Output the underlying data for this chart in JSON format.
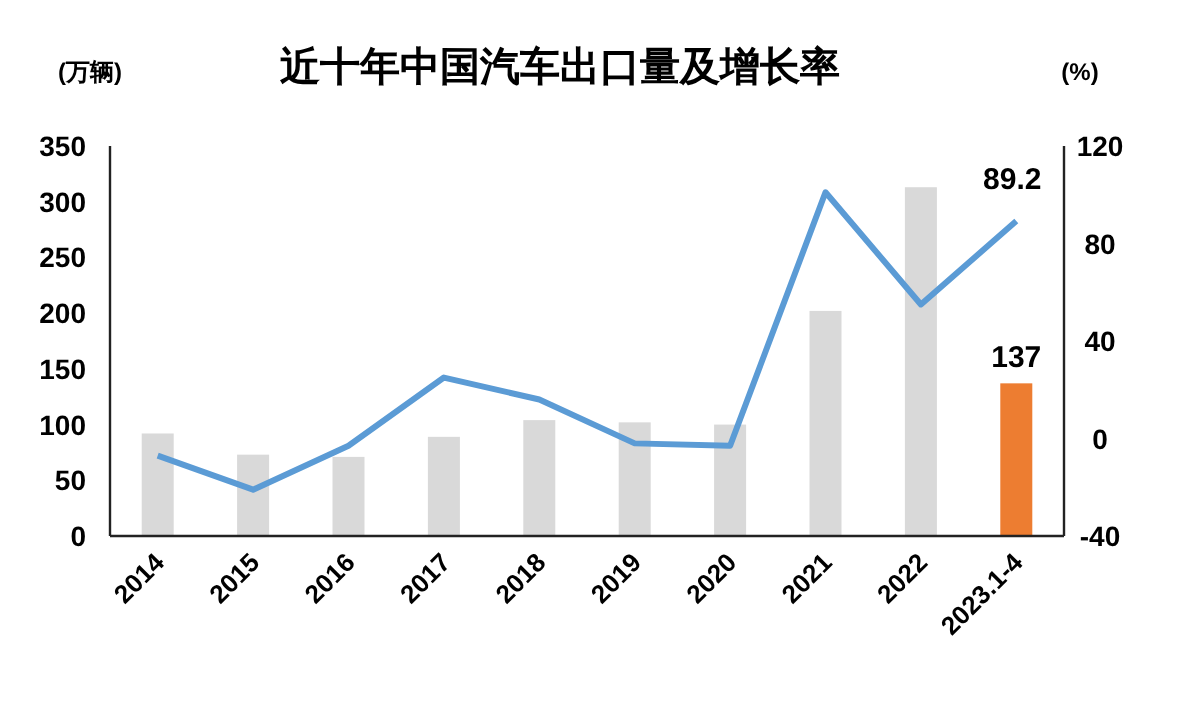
{
  "chart_data": {
    "type": "bar",
    "title": "近十年中国汽车出口量及增长率",
    "ylabel": "(万辆)",
    "y2label": "(%)",
    "categories": [
      "2014",
      "2015",
      "2016",
      "2017",
      "2018",
      "2019",
      "2020",
      "2021",
      "2022",
      "2023.1-4"
    ],
    "series": [
      {
        "colors": [
          "#d9d9d9",
          "#d9d9d9",
          "#d9d9d9",
          "#d9d9d9",
          "#d9d9d9",
          "#d9d9d9",
          "#d9d9d9",
          "#d9d9d9",
          "#d9d9d9",
          "#ed7d31"
        ],
        "values": [
          92,
          73,
          71,
          89,
          104,
          102,
          100,
          202,
          313,
          137
        ],
        "value_labels": [
          null,
          null,
          null,
          null,
          null,
          null,
          null,
          null,
          null,
          "137"
        ]
      },
      {
        "type": "line",
        "axis": "y2",
        "color": "#5b9bd5",
        "values": [
          -7,
          -21,
          -3,
          25,
          16,
          -2,
          -3,
          101,
          55,
          89.2
        ],
        "value_labels": [
          null,
          null,
          null,
          null,
          null,
          null,
          null,
          null,
          null,
          "89.2"
        ]
      }
    ],
    "ylim": [
      0,
      350
    ],
    "yticks": [
      0,
      50,
      100,
      150,
      200,
      250,
      300,
      350
    ],
    "y2lim": [
      -40,
      120
    ],
    "y2ticks": [
      -40,
      0,
      40,
      80,
      120
    ],
    "grid": false
  }
}
